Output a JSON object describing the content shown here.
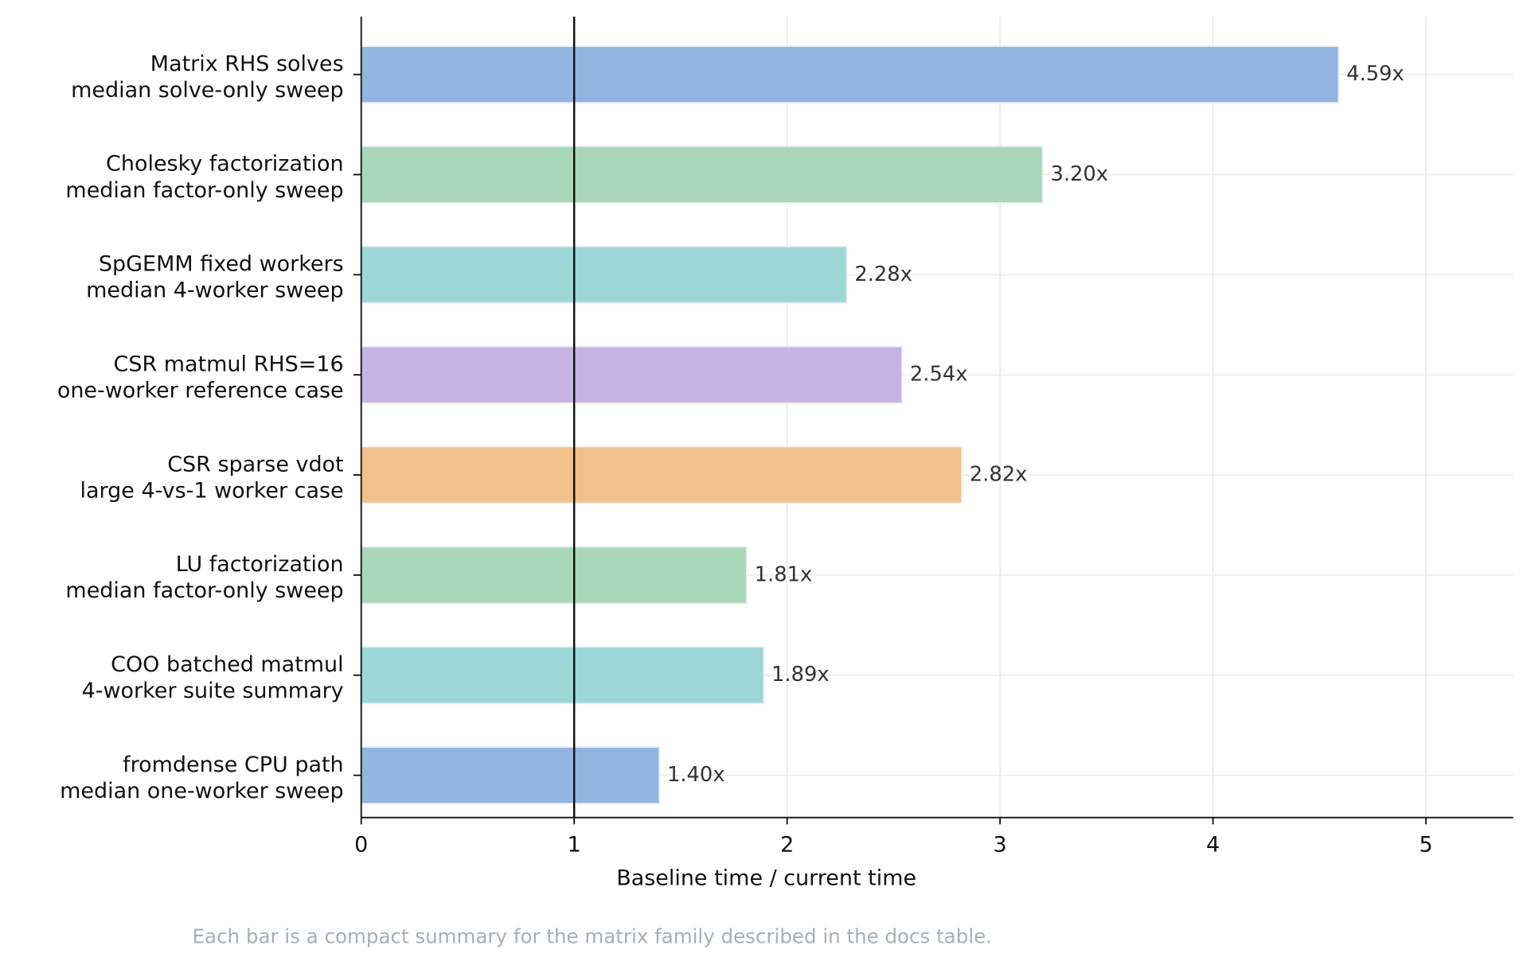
{
  "chart_data": {
    "type": "hbar",
    "categories": [
      [
        "Matrix RHS solves",
        "median solve-only sweep"
      ],
      [
        "Cholesky factorization",
        "median factor-only sweep"
      ],
      [
        "SpGEMM fixed workers",
        "median 4-worker sweep"
      ],
      [
        "CSR matmul RHS=16",
        "one-worker reference case"
      ],
      [
        "CSR sparse vdot",
        "large 4-vs-1 worker case"
      ],
      [
        "LU factorization",
        "median factor-only sweep"
      ],
      [
        "COO batched matmul",
        "4-worker suite summary"
      ],
      [
        "fromdense CPU path",
        "median one-worker sweep"
      ]
    ],
    "values": [
      4.59,
      3.2,
      2.28,
      2.54,
      2.82,
      1.81,
      1.89,
      1.4
    ],
    "value_labels": [
      "4.59x",
      "3.20x",
      "2.28x",
      "2.54x",
      "2.82x",
      "1.81x",
      "1.89x",
      "1.40x"
    ],
    "colors": [
      "#91b5df",
      "#a8d8b7",
      "#9dd7d7",
      "#c5b3e2",
      "#f2c08a",
      "#a8d8b7",
      "#9dd7d7",
      "#91b5df"
    ],
    "xlabel": "Baseline time / current time",
    "xlim": [
      0,
      5.41
    ],
    "xticks": [
      0,
      1,
      2,
      3,
      4,
      5
    ],
    "reference_line": 1,
    "grid": true,
    "note": "Each bar is a compact summary for the matrix family described in the docs table."
  }
}
